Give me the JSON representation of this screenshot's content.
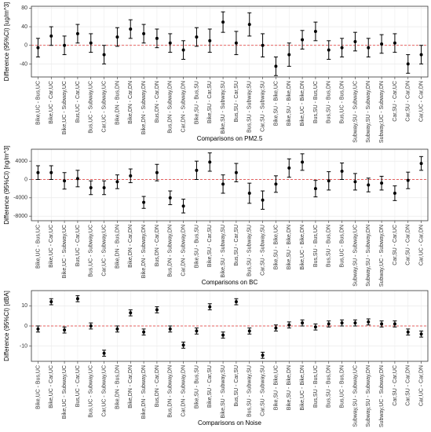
{
  "chart_data": [
    {
      "type": "errorbar",
      "categories": [
        "Bike,UC - Bus,UC",
        "Bike,UC - Car,UC",
        "Bike,UC - Subway,UC",
        "Bus,UC - Car,UC",
        "Bus,UC - Subway,UC",
        "Car,UC - Subway,UC",
        "Bike,DN - Bus,DN",
        "Bike,DN - Car,DN",
        "Bike,DN - Subway,DN",
        "Bus,DN - Car,DN",
        "Bus,DN - Subway,DN",
        "Car,DN - Subway,DN",
        "Bike,SU - Bus,SU",
        "Bike,SU - Car,SU",
        "Bike,SU - Subway,SU",
        "Bus,SU - Car,SU",
        "Bus,SU - Subway,SU",
        "Car,SU - Subway,SU",
        "Bike,SU - Bike,UC",
        "Bike,SU - Bike,DN",
        "Bike,UC - Bike,DN",
        "Bus,SU - Bus,UC",
        "Bus,SU - Bus,DN",
        "Bus,UC - Bus,DN",
        "Subway,SU - Subway,UC",
        "Subway,SU - Subway,DN",
        "Subway,UC - Subway,DN",
        "Car,SU - Car,UC",
        "Car,SU - Car,DN",
        "Car,UC - Car,DN"
      ],
      "values": [
        -5,
        20,
        0,
        25,
        5,
        -20,
        18,
        35,
        25,
        15,
        5,
        -10,
        18,
        10,
        50,
        5,
        45,
        0,
        -45,
        -20,
        12,
        30,
        -10,
        -5,
        8,
        -5,
        3,
        5,
        -40,
        -20
      ],
      "errors": [
        20,
        20,
        20,
        20,
        20,
        20,
        20,
        20,
        20,
        20,
        20,
        20,
        20,
        25,
        22,
        25,
        25,
        25,
        20,
        25,
        20,
        20,
        20,
        20,
        20,
        20,
        20,
        20,
        20,
        20
      ],
      "ylabel": "Difference (95%CI) [ug/m^3]",
      "xlabel": "Comparisons on PM2.5",
      "ylim": [
        -68,
        84
      ],
      "yticks": [
        -40,
        0,
        40,
        80
      ],
      "hline": 0,
      "color": "#000000",
      "hline_color": "#e0312f"
    },
    {
      "type": "errorbar",
      "categories": [
        "Bike,UC - Bus,UC",
        "Bike,UC - Car,UC",
        "Bike,UC - Subway,UC",
        "Bus,UC - Car,UC",
        "Bus,UC - Subway,UC",
        "Car,UC - Subway,UC",
        "Bike,DN - Bus,DN",
        "Bike,DN - Car,DN",
        "Bike,DN - Subway,DN",
        "Bus,DN - Car,DN",
        "Bus,DN - Subway,DN",
        "Car,DN - Subway,DN",
        "Bike,SU - Bus,SU",
        "Bike,SU - Car,SU",
        "Bike,SU - Subway,SU",
        "Bus,SU - Car,SU",
        "Bus,SU - Subway,SU",
        "Car,SU - Subway,SU",
        "Bike,SU - Bike,UC",
        "Bike,SU - Bike,DN",
        "Bike,UC - Bike,DN",
        "Bus,SU - Bus,UC",
        "Bus,SU - Bus,DN",
        "Bus,UC - Bus,DN",
        "Subway,SU - Subway,UC",
        "Subway,SU - Subway,DN",
        "Subway,UC - Subway,DN",
        "Car,SU - Car,UC",
        "Car,SU - Car,DN",
        "Car,UC - Car,DN"
      ],
      "values": [
        1500,
        1500,
        -300,
        200,
        -1800,
        -1800,
        -500,
        800,
        -5000,
        1500,
        -4000,
        -5800,
        2000,
        3800,
        -1000,
        1500,
        -3000,
        -4500,
        -1000,
        2500,
        3800,
        -2000,
        -300,
        1800,
        -500,
        -1200,
        -800,
        -3000,
        -200,
        3500
      ],
      "errors": [
        1500,
        1500,
        1800,
        1800,
        1500,
        1500,
        1500,
        1500,
        1300,
        1800,
        1500,
        1500,
        2000,
        2000,
        2000,
        2000,
        2200,
        2000,
        1800,
        2000,
        1800,
        1800,
        2000,
        1800,
        1800,
        1500,
        1500,
        1600,
        1800,
        1500
      ],
      "ylabel": "Difference (95%CI) [ng/m^3]",
      "xlabel": "Comparisons on BC",
      "ylim": [
        -9000,
        6600
      ],
      "yticks": [
        -8000,
        -4000,
        0,
        4000
      ],
      "hline": 0,
      "color": "#000000",
      "hline_color": "#e0312f"
    },
    {
      "type": "errorbar",
      "categories": [
        "Bike,UC - Bus,UC",
        "Bike,UC - Car,UC",
        "Bike,UC - Subway,UC",
        "Bus,UC - Car,UC",
        "Bus,UC - Subway,UC",
        "Car,UC - Subway,UC",
        "Bike,DN - Bus,DN",
        "Bike,DN - Car,DN",
        "Bike,DN - Subway,DN",
        "Bus,DN - Car,DN",
        "Bus,DN - Subway,DN",
        "Car,DN - Subway,DN",
        "Bike,SU - Bus,SU",
        "Bike,SU - Car,SU",
        "Bike,SU - Subway,SU",
        "Bus,SU - Car,SU",
        "Bus,SU - Subway,SU",
        "Car,SU - Subway,SU",
        "Bike,SU - Bike,UC",
        "Bike,SU - Bike,DN",
        "Bike,UC - Bike,DN",
        "Bus,SU - Bus,UC",
        "Bus,SU - Bus,DN",
        "Bus,UC - Bus,DN",
        "Subway,SU - Subway,UC",
        "Subway,SU - Subway,DN",
        "Subway,UC - Subway,DN",
        "Car,SU - Car,UC",
        "Car,SU - Car,DN",
        "Car,UC - Car,DN"
      ],
      "values": [
        -1.5,
        12,
        -2,
        13.5,
        0,
        -13.5,
        -1.5,
        6.5,
        -3,
        8,
        -1.5,
        -9.5,
        -2.5,
        9.5,
        -4.5,
        12,
        -2.5,
        -14.5,
        -1,
        0.5,
        1.5,
        -0.5,
        1,
        1.5,
        1.5,
        2,
        1,
        1,
        -3,
        -4
      ],
      "errors": [
        1.5,
        1.5,
        1.5,
        1.5,
        1.5,
        1.5,
        1.5,
        1.5,
        1.5,
        1.5,
        1.5,
        1.5,
        1.5,
        1.5,
        1.5,
        1.5,
        1.5,
        1.5,
        1.5,
        1.5,
        1.5,
        1.5,
        1.5,
        1.5,
        1.5,
        1.5,
        1.5,
        1.5,
        1.5,
        1.5
      ],
      "ylabel": "Difference (95%CI) [dBA]",
      "xlabel": "Comparisons on Noise",
      "ylim": [
        -17.5,
        17.5
      ],
      "yticks": [
        -10,
        0,
        10
      ],
      "hline": 0,
      "color": "#000000",
      "hline_color": "#e0312f"
    }
  ]
}
